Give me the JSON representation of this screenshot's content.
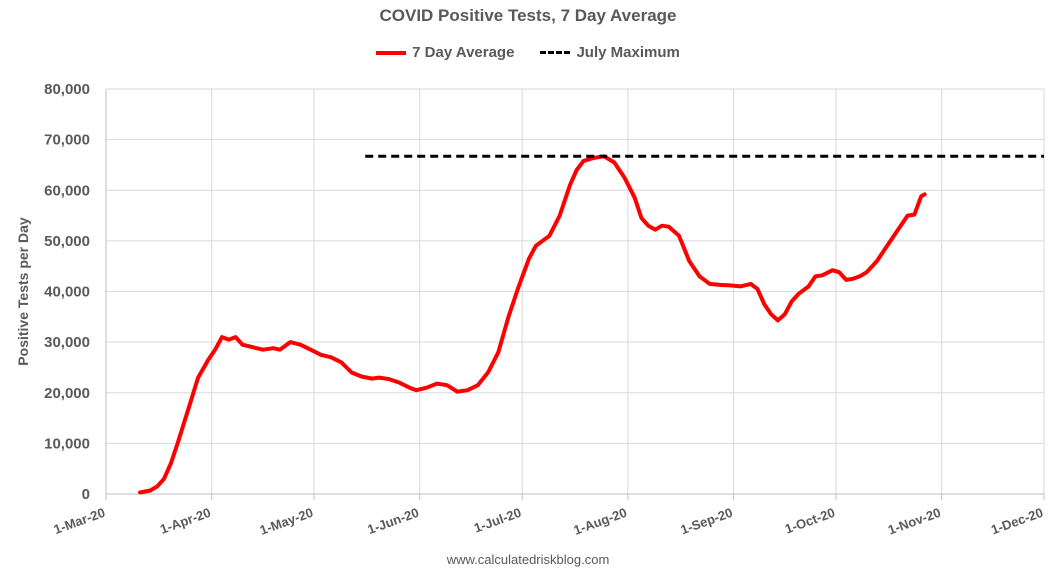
{
  "chart_data": {
    "type": "line",
    "title": "COVID Positive Tests, 7 Day Average",
    "xlabel": "",
    "ylabel": "Positive Tests per Day",
    "ylim": [
      0,
      80000
    ],
    "xlim": [
      "2020-03-01",
      "2020-12-01"
    ],
    "y_ticks": [
      "0",
      "10,000",
      "20,000",
      "30,000",
      "40,000",
      "50,000",
      "60,000",
      "70,000",
      "80,000"
    ],
    "x_ticks": [
      "1-Mar-20",
      "1-Apr-20",
      "1-May-20",
      "1-Jun-20",
      "1-Jul-20",
      "1-Aug-20",
      "1-Sep-20",
      "1-Oct-20",
      "1-Nov-20",
      "1-Dec-20"
    ],
    "grid": true,
    "legend_position": "top",
    "series": [
      {
        "name": "7 Day Average",
        "color": "#ff0000",
        "style": "solid",
        "points": [
          [
            "2020-03-11",
            300
          ],
          [
            "2020-03-14",
            700
          ],
          [
            "2020-03-16",
            1500
          ],
          [
            "2020-03-18",
            3000
          ],
          [
            "2020-03-20",
            6000
          ],
          [
            "2020-03-22",
            10000
          ],
          [
            "2020-03-25",
            16500
          ],
          [
            "2020-03-28",
            23000
          ],
          [
            "2020-03-31",
            26500
          ],
          [
            "2020-04-02",
            28500
          ],
          [
            "2020-04-04",
            31000
          ],
          [
            "2020-04-06",
            30500
          ],
          [
            "2020-04-08",
            31000
          ],
          [
            "2020-04-10",
            29500
          ],
          [
            "2020-04-13",
            29000
          ],
          [
            "2020-04-16",
            28500
          ],
          [
            "2020-04-19",
            28800
          ],
          [
            "2020-04-21",
            28500
          ],
          [
            "2020-04-24",
            30000
          ],
          [
            "2020-04-27",
            29500
          ],
          [
            "2020-04-30",
            28500
          ],
          [
            "2020-05-03",
            27500
          ],
          [
            "2020-05-06",
            27000
          ],
          [
            "2020-05-09",
            26000
          ],
          [
            "2020-05-12",
            24000
          ],
          [
            "2020-05-15",
            23200
          ],
          [
            "2020-05-18",
            22800
          ],
          [
            "2020-05-20",
            23000
          ],
          [
            "2020-05-23",
            22700
          ],
          [
            "2020-05-26",
            22000
          ],
          [
            "2020-05-29",
            21000
          ],
          [
            "2020-05-31",
            20500
          ],
          [
            "2020-06-03",
            21000
          ],
          [
            "2020-06-06",
            21800
          ],
          [
            "2020-06-09",
            21500
          ],
          [
            "2020-06-12",
            20200
          ],
          [
            "2020-06-15",
            20500
          ],
          [
            "2020-06-18",
            21500
          ],
          [
            "2020-06-21",
            24000
          ],
          [
            "2020-06-24",
            28000
          ],
          [
            "2020-06-27",
            35000
          ],
          [
            "2020-06-30",
            41000
          ],
          [
            "2020-07-03",
            46500
          ],
          [
            "2020-07-05",
            49000
          ],
          [
            "2020-07-09",
            51000
          ],
          [
            "2020-07-12",
            55000
          ],
          [
            "2020-07-15",
            61000
          ],
          [
            "2020-07-17",
            64000
          ],
          [
            "2020-07-19",
            65800
          ],
          [
            "2020-07-22",
            66400
          ],
          [
            "2020-07-25",
            66700
          ],
          [
            "2020-07-28",
            65500
          ],
          [
            "2020-07-31",
            62500
          ],
          [
            "2020-08-03",
            58500
          ],
          [
            "2020-08-05",
            54500
          ],
          [
            "2020-08-07",
            53000
          ],
          [
            "2020-08-09",
            52200
          ],
          [
            "2020-08-11",
            53000
          ],
          [
            "2020-08-13",
            52800
          ],
          [
            "2020-08-16",
            51000
          ],
          [
            "2020-08-19",
            46000
          ],
          [
            "2020-08-22",
            43000
          ],
          [
            "2020-08-25",
            41500
          ],
          [
            "2020-08-28",
            41300
          ],
          [
            "2020-08-31",
            41200
          ],
          [
            "2020-09-03",
            41000
          ],
          [
            "2020-09-06",
            41500
          ],
          [
            "2020-09-08",
            40500
          ],
          [
            "2020-09-10",
            37500
          ],
          [
            "2020-09-12",
            35500
          ],
          [
            "2020-09-14",
            34300
          ],
          [
            "2020-09-16",
            35500
          ],
          [
            "2020-09-18",
            38000
          ],
          [
            "2020-09-20",
            39500
          ],
          [
            "2020-09-23",
            41000
          ],
          [
            "2020-09-25",
            43000
          ],
          [
            "2020-09-27",
            43200
          ],
          [
            "2020-09-30",
            44200
          ],
          [
            "2020-10-02",
            43800
          ],
          [
            "2020-10-04",
            42300
          ],
          [
            "2020-10-06",
            42500
          ],
          [
            "2020-10-08",
            43000
          ],
          [
            "2020-10-10",
            43800
          ],
          [
            "2020-10-13",
            46000
          ],
          [
            "2020-10-16",
            49000
          ],
          [
            "2020-10-19",
            52000
          ],
          [
            "2020-10-22",
            55000
          ],
          [
            "2020-10-24",
            55200
          ],
          [
            "2020-10-26",
            58800
          ],
          [
            "2020-10-27",
            59200
          ]
        ]
      },
      {
        "name": "July Maximum",
        "color": "#000000",
        "style": "dashed",
        "points": [
          [
            "2020-05-16",
            66700
          ],
          [
            "2020-12-01",
            66700
          ]
        ]
      }
    ]
  },
  "footer": {
    "source": "www.calculatedriskblog.com"
  }
}
